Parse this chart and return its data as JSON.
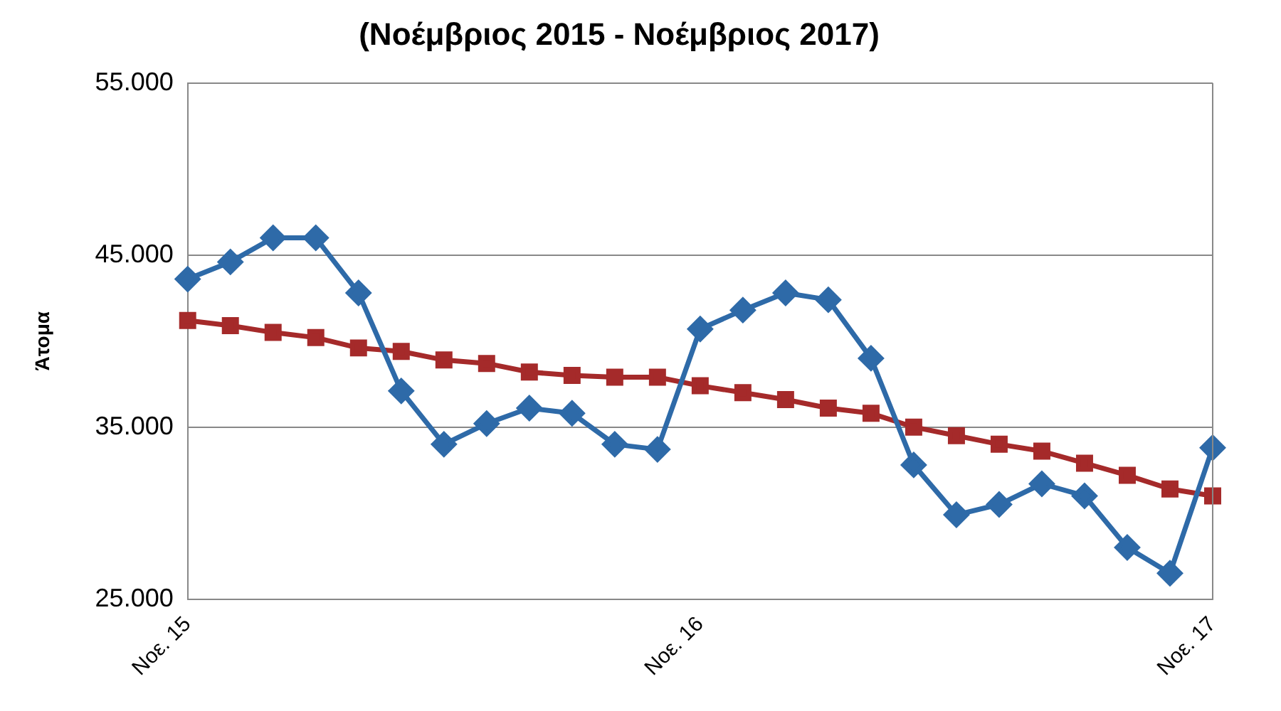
{
  "chart_data": {
    "type": "line",
    "title": "(Νοέμβριος 2015 - Νοέμβριος 2017)",
    "ylabel": "Άτομα",
    "categories": [
      "Νοε. 15",
      null,
      null,
      null,
      null,
      null,
      null,
      null,
      null,
      null,
      null,
      null,
      "Νοε. 16",
      null,
      null,
      null,
      null,
      null,
      null,
      null,
      null,
      null,
      null,
      null,
      "Νοε. 17"
    ],
    "series": [
      {
        "color": "#2e6aa8",
        "marker": "diamond",
        "values": [
          43600,
          44600,
          46000,
          46000,
          42800,
          37100,
          34000,
          35200,
          36100,
          35800,
          34000,
          33700,
          40700,
          41800,
          42800,
          42400,
          39000,
          32800,
          29900,
          30500,
          31700,
          31000,
          28000,
          26500,
          33800
        ]
      },
      {
        "color": "#a52a2a",
        "marker": "square",
        "values": [
          41200,
          40900,
          40500,
          40200,
          39600,
          39400,
          38900,
          38700,
          38200,
          38000,
          37900,
          37900,
          37400,
          37000,
          36600,
          36100,
          35800,
          35000,
          34500,
          34000,
          33600,
          32900,
          32200,
          31400,
          31000
        ]
      }
    ],
    "ylim": [
      25000,
      55000
    ],
    "yticks": [
      {
        "value": 25000,
        "label": "25.000"
      },
      {
        "value": 35000,
        "label": "35.000"
      },
      {
        "value": 45000,
        "label": "45.000"
      },
      {
        "value": 55000,
        "label": "55.000"
      }
    ],
    "grid": "y",
    "legend": false,
    "line_style": "solid"
  }
}
